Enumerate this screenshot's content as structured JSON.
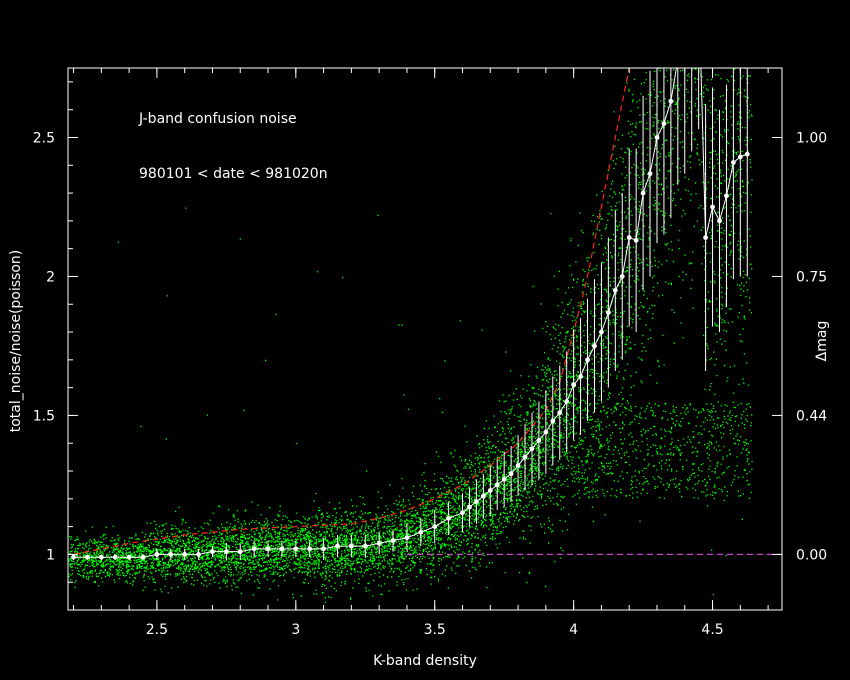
{
  "chart_data": {
    "type": "scatter",
    "title": "J-band confusion noise",
    "subtitle": "980101 < date < 981020n",
    "xlabel": "K-band density",
    "ylabel": "total_noise/noise(poisson)",
    "y2label": "Δmag",
    "xlim": [
      2.18,
      4.75
    ],
    "ylim": [
      0.8,
      2.75
    ],
    "xticks": [
      "2.5",
      "3",
      "3.5",
      "4",
      "4.5"
    ],
    "yticks": [
      "1",
      "1.5",
      "2",
      "2.5"
    ],
    "y2ticks": [
      "0.00",
      "0.44",
      "0.75",
      "1.00"
    ],
    "y2tick_positions_y": [
      1.0,
      1.5,
      2.0,
      2.5
    ],
    "grid": false,
    "colors": {
      "points": "#00ff00",
      "binned": "#ffffff",
      "model": "#ff2020",
      "baseline": "#cc44cc",
      "axes": "#ffffff"
    },
    "series": [
      {
        "kind": "binned_mean_with_errorbars",
        "x": [
          2.2,
          2.25,
          2.3,
          2.35,
          2.4,
          2.45,
          2.5,
          2.55,
          2.6,
          2.65,
          2.7,
          2.75,
          2.8,
          2.85,
          2.9,
          2.95,
          3.0,
          3.05,
          3.1,
          3.15,
          3.2,
          3.25,
          3.3,
          3.35,
          3.4,
          3.45,
          3.5,
          3.55,
          3.6,
          3.625,
          3.65,
          3.675,
          3.7,
          3.725,
          3.75,
          3.775,
          3.8,
          3.825,
          3.85,
          3.875,
          3.9,
          3.925,
          3.95,
          3.975,
          4.0,
          4.025,
          4.05,
          4.075,
          4.1,
          4.125,
          4.15,
          4.175,
          4.2,
          4.225,
          4.25,
          4.275,
          4.3,
          4.325,
          4.35,
          4.375,
          4.4,
          4.425,
          4.45,
          4.475,
          4.5,
          4.525,
          4.55,
          4.575,
          4.6,
          4.625
        ],
        "y": [
          0.99,
          0.99,
          0.99,
          0.99,
          0.99,
          0.99,
          1.0,
          1.0,
          1.0,
          1.0,
          1.01,
          1.01,
          1.01,
          1.02,
          1.02,
          1.02,
          1.02,
          1.02,
          1.02,
          1.03,
          1.03,
          1.03,
          1.04,
          1.05,
          1.06,
          1.08,
          1.1,
          1.13,
          1.15,
          1.17,
          1.19,
          1.21,
          1.23,
          1.25,
          1.27,
          1.29,
          1.32,
          1.35,
          1.38,
          1.41,
          1.44,
          1.48,
          1.51,
          1.55,
          1.61,
          1.64,
          1.7,
          1.75,
          1.8,
          1.87,
          1.95,
          2.0,
          2.14,
          2.13,
          2.3,
          2.37,
          2.5,
          2.55,
          2.63,
          2.78,
          2.85,
          2.95,
          3.05,
          2.14,
          2.25,
          2.2,
          2.29,
          2.41,
          2.43,
          2.44
        ],
        "err": [
          0.01,
          0.01,
          0.01,
          0.01,
          0.01,
          0.01,
          0.02,
          0.02,
          0.02,
          0.02,
          0.02,
          0.03,
          0.03,
          0.03,
          0.03,
          0.03,
          0.03,
          0.03,
          0.04,
          0.04,
          0.04,
          0.04,
          0.04,
          0.04,
          0.05,
          0.05,
          0.06,
          0.06,
          0.07,
          0.07,
          0.08,
          0.08,
          0.09,
          0.09,
          0.1,
          0.1,
          0.11,
          0.12,
          0.13,
          0.14,
          0.15,
          0.16,
          0.17,
          0.18,
          0.2,
          0.21,
          0.22,
          0.24,
          0.25,
          0.27,
          0.29,
          0.3,
          0.32,
          0.33,
          0.35,
          0.37,
          0.38,
          0.4,
          0.42,
          0.45,
          0.48,
          0.5,
          0.52,
          0.48,
          0.43,
          0.4,
          0.4,
          0.42,
          0.43,
          0.44
        ]
      },
      {
        "kind": "model_curve",
        "x": [
          2.2,
          2.4,
          2.6,
          2.8,
          3.0,
          3.2,
          3.3,
          3.4,
          3.5,
          3.6,
          3.7,
          3.8,
          3.9,
          3.95,
          4.0,
          4.05,
          4.1,
          4.15,
          4.2
        ],
        "y": [
          1.0,
          1.04,
          1.07,
          1.09,
          1.1,
          1.11,
          1.13,
          1.16,
          1.2,
          1.25,
          1.32,
          1.4,
          1.52,
          1.62,
          1.8,
          2.0,
          2.25,
          2.5,
          2.75
        ]
      },
      {
        "kind": "baseline",
        "x": [
          3.4,
          4.75
        ],
        "y": [
          1.0,
          1.0
        ]
      }
    ]
  }
}
